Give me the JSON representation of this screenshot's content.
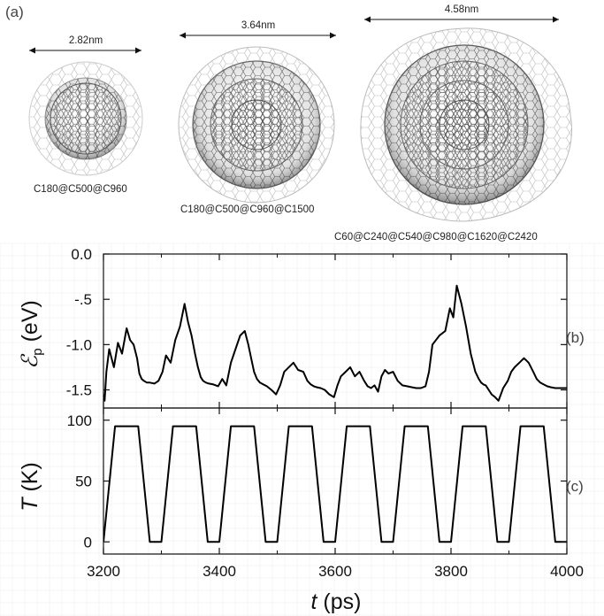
{
  "panel_a": {
    "tag": "(a)",
    "molecules": [
      {
        "diameter": "2.82nm",
        "caption": "C180@C500@C960"
      },
      {
        "diameter": "3.64nm",
        "caption": "C180@C500@C960@C1500"
      },
      {
        "diameter": "4.58nm",
        "caption": "C60@C240@C540@C980@C1620@C2420"
      }
    ]
  },
  "panel_b_tag": "(b)",
  "panel_c_tag": "(c)",
  "axes": {
    "x_label_symbol": "t",
    "x_label_unit": " (ps)",
    "y_b_symbol": "ℰ",
    "y_b_sub": "p",
    "y_b_unit": " (eV)",
    "y_c_symbol": "T",
    "y_c_unit": " (K)"
  },
  "chart_data": [
    {
      "type": "line",
      "panel": "(b)",
      "ylabel": "Ep (eV)",
      "xlim": [
        3200,
        4000
      ],
      "ylim": [
        -1.7,
        0.0
      ],
      "x_ticks": [
        3200,
        3400,
        3600,
        3800,
        4000
      ],
      "y_ticks": [
        0.0,
        -0.5,
        -1.0,
        -1.5
      ],
      "y_tick_labels": [
        "0.0",
        "-.5",
        "-1.0",
        "-1.5"
      ],
      "series": [
        {
          "color": "#000000",
          "x": [
            3200,
            3202,
            3205,
            3210,
            3218,
            3225,
            3232,
            3240,
            3246,
            3252,
            3258,
            3262,
            3266,
            3270,
            3275,
            3280,
            3288,
            3295,
            3302,
            3308,
            3316,
            3324,
            3332,
            3340,
            3346,
            3352,
            3358,
            3363,
            3368,
            3372,
            3377,
            3382,
            3390,
            3398,
            3405,
            3412,
            3420,
            3428,
            3436,
            3444,
            3450,
            3455,
            3460,
            3465,
            3470,
            3476,
            3482,
            3490,
            3498,
            3505,
            3512,
            3520,
            3528,
            3536,
            3545,
            3552,
            3558,
            3563,
            3568,
            3575,
            3582,
            3590,
            3598,
            3604,
            3610,
            3618,
            3626,
            3634,
            3642,
            3650,
            3656,
            3662,
            3668,
            3674,
            3680,
            3686,
            3692,
            3700,
            3708,
            3716,
            3724,
            3732,
            3740,
            3748,
            3756,
            3762,
            3768,
            3774,
            3780,
            3790,
            3798,
            3804,
            3810,
            3818,
            3826,
            3834,
            3842,
            3848,
            3852,
            3856,
            3860,
            3865,
            3870,
            3876,
            3882,
            3890,
            3898,
            3904,
            3910,
            3918,
            3926,
            3934,
            3942,
            3948,
            3954,
            3960,
            3966,
            3972,
            3980,
            3990,
            4000
          ],
          "y": [
            -1.55,
            -1.62,
            -1.3,
            -1.05,
            -1.25,
            -0.98,
            -1.1,
            -0.82,
            -0.95,
            -1.0,
            -1.15,
            -1.32,
            -1.38,
            -1.4,
            -1.42,
            -1.42,
            -1.43,
            -1.4,
            -1.3,
            -1.12,
            -1.2,
            -0.95,
            -0.8,
            -0.55,
            -0.75,
            -0.9,
            -1.1,
            -1.25,
            -1.36,
            -1.4,
            -1.42,
            -1.43,
            -1.44,
            -1.46,
            -1.38,
            -1.45,
            -1.2,
            -1.05,
            -0.9,
            -0.85,
            -1.0,
            -1.15,
            -1.3,
            -1.38,
            -1.42,
            -1.44,
            -1.46,
            -1.5,
            -1.55,
            -1.45,
            -1.3,
            -1.25,
            -1.2,
            -1.28,
            -1.3,
            -1.4,
            -1.44,
            -1.46,
            -1.47,
            -1.48,
            -1.5,
            -1.55,
            -1.58,
            -1.45,
            -1.35,
            -1.3,
            -1.25,
            -1.35,
            -1.3,
            -1.4,
            -1.46,
            -1.48,
            -1.45,
            -1.52,
            -1.35,
            -1.28,
            -1.32,
            -1.3,
            -1.4,
            -1.45,
            -1.46,
            -1.47,
            -1.48,
            -1.48,
            -1.46,
            -1.3,
            -1.0,
            -0.95,
            -0.9,
            -0.85,
            -0.6,
            -0.7,
            -0.35,
            -0.55,
            -0.8,
            -1.1,
            -1.3,
            -1.38,
            -1.42,
            -1.44,
            -1.45,
            -1.5,
            -1.55,
            -1.58,
            -1.62,
            -1.48,
            -1.4,
            -1.3,
            -1.25,
            -1.2,
            -1.15,
            -1.2,
            -1.3,
            -1.38,
            -1.42,
            -1.44,
            -1.46,
            -1.47,
            -1.48,
            -1.48,
            -1.48
          ]
        }
      ]
    },
    {
      "type": "line",
      "panel": "(c)",
      "ylabel": "T (K)",
      "xlabel": "t (ps)",
      "xlim": [
        3200,
        4000
      ],
      "ylim": [
        -10,
        110
      ],
      "x_ticks": [
        3200,
        3400,
        3600,
        3800,
        4000
      ],
      "x_tick_labels": [
        "3200",
        "3400",
        "3600",
        "3800",
        "4000"
      ],
      "y_ticks": [
        0,
        50,
        100
      ],
      "y_tick_labels": [
        "0",
        "50",
        "100"
      ],
      "series": [
        {
          "color": "#000000",
          "x": [
            3200,
            3220,
            3260,
            3280,
            3300,
            3320,
            3360,
            3380,
            3400,
            3420,
            3460,
            3480,
            3500,
            3520,
            3560,
            3580,
            3600,
            3620,
            3660,
            3680,
            3700,
            3720,
            3760,
            3780,
            3800,
            3820,
            3860,
            3880,
            3900,
            3920,
            3960,
            3980,
            4000
          ],
          "y": [
            0,
            95,
            95,
            0,
            0,
            95,
            95,
            0,
            0,
            95,
            95,
            0,
            0,
            95,
            95,
            0,
            0,
            95,
            95,
            0,
            0,
            95,
            95,
            0,
            0,
            95,
            95,
            0,
            0,
            95,
            95,
            0,
            0
          ]
        }
      ]
    }
  ]
}
